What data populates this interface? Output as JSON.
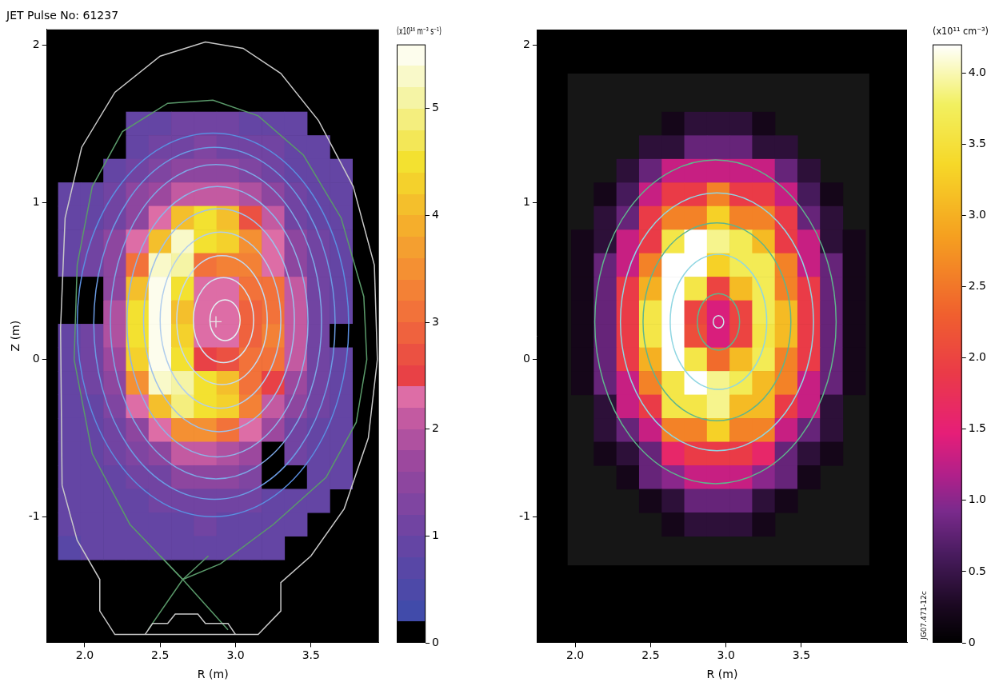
{
  "chart_data": [
    {
      "type": "heatmap",
      "title": "JET Pulse No: 61237",
      "x_label": "R (m)",
      "y_label": "Z (m)",
      "xlim": [
        1.75,
        3.95
      ],
      "ylim": [
        -1.8,
        2.1
      ],
      "xticks": [
        {
          "value": 2,
          "label": "2.0"
        },
        2.5,
        {
          "value": 3,
          "label": "3.0"
        },
        3.5
      ],
      "yticks": [
        -1,
        0,
        1,
        2
      ],
      "grid": false,
      "r": [
        1.9,
        2.05,
        2.2,
        2.35,
        2.5,
        2.65,
        2.8,
        2.95,
        3.1,
        3.25,
        3.4,
        3.55,
        3.7
      ],
      "z": [
        1.5,
        1.35,
        1.2,
        1.05,
        0.9,
        0.75,
        0.6,
        0.45,
        0.3,
        0.15,
        0,
        -0.15,
        -0.3,
        -0.45,
        -0.6,
        -0.75,
        -0.9,
        -1.05,
        -1.2
      ],
      "cells": [
        [
          null,
          null,
          null,
          0.8,
          0.9,
          1.0,
          1.0,
          1.0,
          0.9,
          0.9,
          0.8,
          null,
          null
        ],
        [
          null,
          null,
          0,
          0.9,
          1.1,
          1.1,
          1.2,
          1.1,
          1.1,
          1.0,
          0.9,
          0.8,
          null
        ],
        [
          null,
          0,
          0.9,
          1.1,
          1.3,
          1.4,
          1.5,
          1.4,
          1.3,
          1.1,
          0.9,
          0.9,
          0.8
        ],
        [
          0.8,
          0.9,
          1.1,
          1.4,
          1.6,
          2.0,
          2.0,
          2.0,
          1.8,
          1.4,
          1.1,
          0.9,
          0.8
        ],
        [
          0.8,
          0.9,
          1.1,
          1.4,
          2.3,
          4.0,
          4.5,
          4.0,
          2.6,
          2.0,
          1.1,
          0.9,
          0.8
        ],
        [
          0.9,
          1.0,
          1.4,
          2.3,
          4.0,
          5.3,
          4.5,
          4.3,
          3.5,
          2.2,
          1.4,
          1.1,
          0.9
        ],
        [
          0.9,
          1.1,
          1.4,
          3.0,
          5.3,
          5.0,
          3.0,
          3.2,
          3.2,
          2.2,
          1.4,
          1.1,
          0.9
        ],
        [
          0,
          0,
          1.4,
          4.0,
          5.5,
          4.5,
          2.2,
          2.2,
          3.0,
          3.1,
          2.0,
          1.1,
          0.9
        ],
        [
          0,
          0,
          1.8,
          4.5,
          5.5,
          4.0,
          2.2,
          2.2,
          2.9,
          3.1,
          2.0,
          1.1,
          0.9
        ],
        [
          0.9,
          1.1,
          1.8,
          4.5,
          5.5,
          4.2,
          2.2,
          2.2,
          2.9,
          3.2,
          2.0,
          1.1,
          0
        ],
        [
          0.9,
          1.1,
          1.6,
          4.3,
          5.4,
          4.5,
          2.4,
          2.6,
          3.0,
          3.0,
          2.0,
          1.1,
          0.9
        ],
        [
          0.9,
          1.1,
          1.5,
          3.5,
          5.2,
          5.0,
          4.5,
          4.0,
          3.1,
          2.5,
          1.6,
          1.1,
          0.9
        ],
        [
          0.9,
          0.9,
          1.3,
          2.3,
          4.0,
          4.8,
          4.5,
          4.2,
          3.3,
          2.1,
          1.4,
          1.1,
          0.9
        ],
        [
          0.8,
          0.9,
          1.1,
          1.4,
          2.3,
          3.5,
          3.5,
          3.0,
          2.3,
          1.6,
          1.1,
          0.9,
          0.8
        ],
        [
          0.8,
          0.9,
          1.1,
          1.2,
          1.4,
          2.0,
          2.0,
          1.9,
          1.6,
          0,
          1.1,
          0.9,
          0.8
        ],
        [
          0.8,
          0.9,
          0.9,
          1.1,
          1.1,
          1.4,
          1.4,
          1.4,
          1.3,
          0,
          0,
          0.9,
          0.8
        ],
        [
          0.8,
          0.8,
          0.9,
          0.9,
          1.1,
          1.1,
          1.1,
          1.1,
          1.1,
          0.9,
          0.9,
          0.8,
          null
        ],
        [
          0.8,
          0.8,
          0.9,
          0.9,
          0.9,
          0.9,
          1.0,
          0.9,
          0.9,
          0.9,
          0.8,
          null,
          null
        ],
        [
          0.7,
          0.8,
          0.8,
          0.8,
          0.8,
          0.8,
          0.8,
          0.8,
          0.8,
          0.8,
          null,
          null,
          null
        ]
      ],
      "colorbar": {
        "label": "(x10¹⁶ m⁻³ s⁻¹)",
        "range": [
          0,
          5.6
        ],
        "ticks": [
          0,
          1,
          2,
          3,
          4,
          5
        ]
      },
      "flux_surfaces": [
        {
          "r": 2.93,
          "z": 0.25,
          "a": 0.1,
          "b": 0.13
        },
        {
          "r": 2.92,
          "z": 0.25,
          "a": 0.2,
          "b": 0.27
        },
        {
          "r": 2.91,
          "z": 0.25,
          "a": 0.3,
          "b": 0.41
        },
        {
          "r": 2.9,
          "z": 0.25,
          "a": 0.4,
          "b": 0.56
        },
        {
          "r": 2.89,
          "z": 0.25,
          "a": 0.5,
          "b": 0.71
        },
        {
          "r": 2.88,
          "z": 0.24,
          "a": 0.6,
          "b": 0.86
        },
        {
          "r": 2.87,
          "z": 0.24,
          "a": 0.7,
          "b": 1.0
        },
        {
          "r": 2.86,
          "z": 0.23,
          "a": 0.8,
          "b": 1.12
        },
        {
          "r": 2.85,
          "z": 0.22,
          "a": 0.9,
          "b": 1.22
        }
      ],
      "magnetic_axis": {
        "r": 2.87,
        "z": 0.24,
        "marker": "cross"
      },
      "separatrix": [
        [
          2.65,
          -1.4
        ],
        [
          2.3,
          -1.05
        ],
        [
          2.05,
          -0.6
        ],
        [
          1.93,
          0
        ],
        [
          1.95,
          0.6
        ],
        [
          2.05,
          1.1
        ],
        [
          2.25,
          1.45
        ],
        [
          2.55,
          1.63
        ],
        [
          2.85,
          1.65
        ],
        [
          3.15,
          1.55
        ],
        [
          3.45,
          1.3
        ],
        [
          3.7,
          0.9
        ],
        [
          3.85,
          0.4
        ],
        [
          3.87,
          0
        ],
        [
          3.8,
          -0.4
        ],
        [
          3.6,
          -0.75
        ],
        [
          3.25,
          -1.05
        ],
        [
          2.9,
          -1.3
        ],
        [
          2.65,
          -1.4
        ]
      ],
      "divertor_legs": [
        [
          [
            2.65,
            -1.4
          ],
          [
            2.42,
            -1.72
          ]
        ],
        [
          [
            2.65,
            -1.4
          ],
          [
            2.95,
            -1.72
          ]
        ],
        [
          [
            2.65,
            -1.4
          ],
          [
            2.5,
            -1.25
          ]
        ],
        [
          [
            2.65,
            -1.4
          ],
          [
            2.82,
            -1.25
          ]
        ]
      ],
      "first_wall": [
        [
          1.85,
          -0.8
        ],
        [
          1.84,
          0.2
        ],
        [
          1.87,
          0.9
        ],
        [
          1.98,
          1.35
        ],
        [
          2.2,
          1.7
        ],
        [
          2.5,
          1.93
        ],
        [
          2.8,
          2.02
        ],
        [
          3.05,
          1.98
        ],
        [
          3.3,
          1.82
        ],
        [
          3.55,
          1.52
        ],
        [
          3.78,
          1.1
        ],
        [
          3.92,
          0.6
        ],
        [
          3.94,
          0
        ],
        [
          3.88,
          -0.5
        ],
        [
          3.72,
          -0.95
        ],
        [
          3.5,
          -1.25
        ],
        [
          3.3,
          -1.42
        ],
        [
          3.3,
          -1.6
        ],
        [
          3.15,
          -1.75
        ],
        [
          2.2,
          -1.75
        ],
        [
          2.1,
          -1.6
        ],
        [
          2.1,
          -1.4
        ],
        [
          1.95,
          -1.15
        ],
        [
          1.85,
          -0.8
        ]
      ],
      "divertor": [
        [
          2.4,
          -1.75
        ],
        [
          2.45,
          -1.68
        ],
        [
          2.55,
          -1.68
        ],
        [
          2.6,
          -1.62
        ],
        [
          2.75,
          -1.62
        ],
        [
          2.8,
          -1.68
        ],
        [
          2.95,
          -1.68
        ],
        [
          3.0,
          -1.75
        ]
      ]
    },
    {
      "type": "heatmap",
      "x_label": "R (m)",
      "xlim": [
        1.75,
        4.2
      ],
      "ylim": [
        -1.8,
        2.1
      ],
      "xticks": [
        {
          "value": 2,
          "label": "2.0"
        },
        2.5,
        {
          "value": 3,
          "label": "3.0"
        },
        3.5
      ],
      "yticks": [
        -1,
        0,
        1,
        2
      ],
      "grid": false,
      "domain": {
        "r": [
          1.95,
          3.95
        ],
        "z": [
          -1.31,
          1.82
        ]
      },
      "r": [
        2.05,
        2.2,
        2.35,
        2.5,
        2.65,
        2.8,
        2.95,
        3.1,
        3.25,
        3.4,
        3.55,
        3.7,
        3.85
      ],
      "z": [
        1.5,
        1.35,
        1.2,
        1.05,
        0.9,
        0.75,
        0.6,
        0.45,
        0.3,
        0.15,
        0,
        -0.15,
        -0.3,
        -0.45,
        -0.6,
        -0.75,
        -0.9,
        -1.05
      ],
      "cells": [
        [
          null,
          null,
          null,
          null,
          0.2,
          0.4,
          0.4,
          0.4,
          0.2,
          null,
          null,
          null,
          null
        ],
        [
          null,
          null,
          null,
          0.4,
          0.4,
          0.8,
          0.8,
          0.8,
          0.4,
          0.4,
          null,
          null,
          null
        ],
        [
          null,
          null,
          0.4,
          0.8,
          1.3,
          1.3,
          1.3,
          1.3,
          1.3,
          0.8,
          0.4,
          null,
          null
        ],
        [
          null,
          0.2,
          0.6,
          1.3,
          1.9,
          1.9,
          2.6,
          1.9,
          1.9,
          1.3,
          0.6,
          0.2,
          null
        ],
        [
          null,
          0.4,
          0.8,
          1.9,
          2.6,
          2.6,
          3.3,
          2.6,
          2.6,
          1.9,
          0.8,
          0.4,
          null
        ],
        [
          0.2,
          0.4,
          1.3,
          1.9,
          3.6,
          4.2,
          3.9,
          3.7,
          3.1,
          1.9,
          1.3,
          0.4,
          0.2
        ],
        [
          0.2,
          0.8,
          1.3,
          2.6,
          4.2,
          4.2,
          3.3,
          3.7,
          3.7,
          2.6,
          1.3,
          0.8,
          0.2
        ],
        [
          0.2,
          0.8,
          1.9,
          3.0,
          4.2,
          3.6,
          2.0,
          3.1,
          3.7,
          2.6,
          1.9,
          0.8,
          0.2
        ],
        [
          0.2,
          0.8,
          1.9,
          3.6,
          4.2,
          2.0,
          1.4,
          2.0,
          3.7,
          3.1,
          1.9,
          0.8,
          0.2
        ],
        [
          0.2,
          0.8,
          1.9,
          3.6,
          4.3,
          2.1,
          1.4,
          2.0,
          3.6,
          3.1,
          1.9,
          0.8,
          0.2
        ],
        [
          0.2,
          0.8,
          1.9,
          3.0,
          4.2,
          3.6,
          2.4,
          3.1,
          3.7,
          2.6,
          1.9,
          0.8,
          0.2
        ],
        [
          0.2,
          0.8,
          1.3,
          2.6,
          3.6,
          4.2,
          3.9,
          3.7,
          3.1,
          2.6,
          1.3,
          0.8,
          0.2
        ],
        [
          null,
          0.4,
          1.3,
          1.9,
          3.6,
          3.6,
          3.9,
          3.1,
          3.1,
          1.9,
          1.3,
          0.4,
          null
        ],
        [
          null,
          0.4,
          0.8,
          1.3,
          2.6,
          2.6,
          3.3,
          2.6,
          2.6,
          1.3,
          0.8,
          0.4,
          null
        ],
        [
          null,
          0.2,
          0.4,
          0.8,
          1.6,
          1.9,
          1.9,
          1.9,
          1.6,
          0.8,
          0.4,
          0.2,
          null
        ],
        [
          null,
          null,
          0.2,
          0.8,
          1.0,
          1.3,
          1.3,
          1.3,
          1.0,
          0.8,
          0.2,
          null,
          null
        ],
        [
          null,
          null,
          null,
          0.2,
          0.4,
          0.8,
          0.8,
          0.8,
          0.4,
          0.2,
          null,
          null,
          null
        ],
        [
          null,
          null,
          null,
          null,
          0.2,
          0.4,
          0.4,
          0.4,
          0.2,
          null,
          null,
          null,
          null
        ]
      ],
      "colorbar": {
        "label": "(x10¹¹ cm⁻³)",
        "range": [
          0,
          4.2
        ],
        "ticks": [
          0,
          0.5,
          {
            "value": 1,
            "label": "1.0"
          },
          1.5,
          {
            "value": 2,
            "label": "2.0"
          },
          2.5,
          {
            "value": 3,
            "label": "3.0"
          },
          3.5,
          {
            "value": 4,
            "label": "4.0"
          }
        ]
      },
      "flux_surfaces": [
        {
          "r": 2.95,
          "z": 0.24,
          "a": 0.035,
          "b": 0.04
        },
        {
          "r": 2.95,
          "z": 0.24,
          "a": 0.14,
          "b": 0.18
        },
        {
          "r": 2.95,
          "z": 0.24,
          "a": 0.32,
          "b": 0.43
        },
        {
          "r": 2.94,
          "z": 0.24,
          "a": 0.49,
          "b": 0.63
        },
        {
          "r": 2.94,
          "z": 0.24,
          "a": 0.64,
          "b": 0.82
        },
        {
          "r": 2.93,
          "z": 0.24,
          "a": 0.8,
          "b": 1.03
        }
      ],
      "annotations": [
        "JG07.471-12c"
      ]
    }
  ]
}
